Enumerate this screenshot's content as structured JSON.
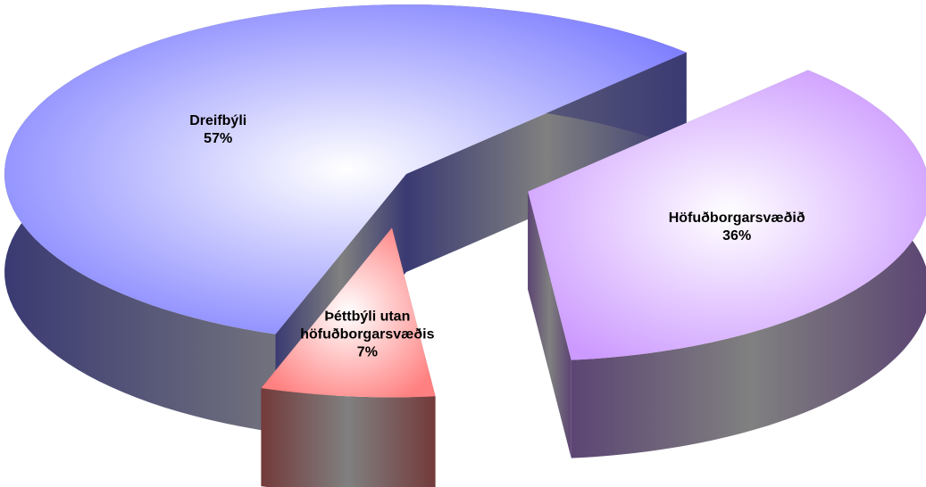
{
  "chart_data": {
    "type": "pie",
    "categories": [
      "Dreifbýli",
      "Höfuðborgarsvæðið",
      "Þéttbýli utan höfuðborgarsvæðis"
    ],
    "values": [
      57,
      36,
      7
    ],
    "value_labels": [
      "57%",
      "36%",
      "7%"
    ],
    "colors": [
      "#8080ff",
      "#cc99ff",
      "#ff8080"
    ]
  }
}
